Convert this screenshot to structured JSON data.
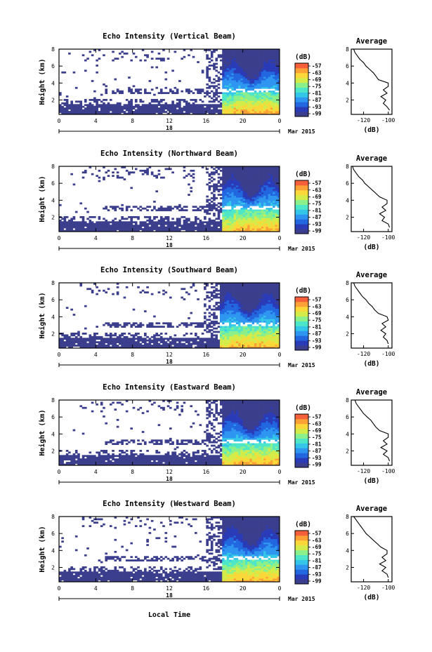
{
  "x_label": "Local Time",
  "unit_label": "(dB)",
  "colorbar": {
    "ticks": [
      -57,
      -63,
      -69,
      -75,
      -81,
      -87,
      -93,
      -99
    ],
    "colors": [
      "#3b3e8c",
      "#2a3bb8",
      "#2266e0",
      "#2e96f0",
      "#33c6e8",
      "#4ee6c8",
      "#8cf08a",
      "#d4ec4a",
      "#fbd83a",
      "#fca136",
      "#f5603a"
    ]
  },
  "chart_data": [
    {
      "type": "heatmap",
      "title": "Echo Intensity (Vertical Beam)",
      "ylabel": "Height (km)",
      "x_ticks": [
        "0",
        "4",
        "8",
        "12",
        "16",
        "20",
        "0"
      ],
      "y_ticks": [
        "2",
        "4",
        "6",
        "8"
      ],
      "xlim": [
        0,
        24
      ],
      "ylim": [
        0.3,
        8
      ],
      "date_labels": {
        "day": "18",
        "month_year": "Mar 2015"
      },
      "colorbar_range_db": [
        -99,
        -57
      ],
      "profile": {
        "title": "Average",
        "xlabel": "(dB)",
        "x_ticks": [
          "-120",
          "-100"
        ],
        "y_ticks": [
          "2",
          "4",
          "6",
          "8"
        ],
        "xlim": [
          -130,
          -97
        ],
        "ylim": [
          0.3,
          8
        ],
        "heights_km": [
          0.8,
          1.2,
          1.6,
          2.0,
          2.4,
          2.8,
          3.2,
          3.6,
          4.0,
          4.4,
          4.8,
          5.2,
          5.6,
          6.0,
          6.4,
          6.8,
          7.2,
          7.6,
          8.0
        ],
        "values_db": [
          -99,
          -101,
          -104,
          -102,
          -106,
          -101,
          -104,
          -100,
          -100,
          -108,
          -110,
          -112,
          -115,
          -118,
          -120,
          -123,
          -125,
          -127,
          -128
        ]
      }
    },
    {
      "type": "heatmap",
      "title": "Echo Intensity (Northward Beam)",
      "ylabel": "Height (km)",
      "x_ticks": [
        "0",
        "4",
        "8",
        "12",
        "16",
        "20",
        "0"
      ],
      "y_ticks": [
        "2",
        "4",
        "6",
        "8"
      ],
      "xlim": [
        0,
        24
      ],
      "ylim": [
        0.3,
        8
      ],
      "date_labels": {
        "day": "18",
        "month_year": "Mar 2015"
      },
      "colorbar_range_db": [
        -99,
        -57
      ],
      "profile": {
        "title": "Average",
        "xlabel": "(dB)",
        "x_ticks": [
          "-120",
          "-100"
        ],
        "y_ticks": [
          "2",
          "4",
          "6",
          "8"
        ],
        "xlim": [
          -130,
          -97
        ],
        "ylim": [
          0.3,
          8
        ],
        "heights_km": [
          0.8,
          1.2,
          1.6,
          2.0,
          2.4,
          2.8,
          3.2,
          3.6,
          4.0,
          4.4,
          4.8,
          5.2,
          5.6,
          6.0,
          6.4,
          6.8,
          7.2,
          7.6,
          8.0
        ],
        "values_db": [
          -99,
          -100,
          -105,
          -103,
          -107,
          -102,
          -105,
          -101,
          -101,
          -107,
          -110,
          -113,
          -116,
          -119,
          -121,
          -124,
          -126,
          -128,
          -129
        ]
      }
    },
    {
      "type": "heatmap",
      "title": "Echo Intensity (Southward Beam)",
      "ylabel": "Height (km)",
      "x_ticks": [
        "0",
        "4",
        "8",
        "12",
        "16",
        "20",
        "0"
      ],
      "y_ticks": [
        "2",
        "4",
        "6",
        "8"
      ],
      "xlim": [
        0,
        24
      ],
      "ylim": [
        0.3,
        8
      ],
      "date_labels": {
        "day": "18",
        "month_year": "Mar 2015"
      },
      "colorbar_range_db": [
        -99,
        -57
      ],
      "profile": {
        "title": "Average",
        "xlabel": "(dB)",
        "x_ticks": [
          "-120",
          "-100"
        ],
        "y_ticks": [
          "2",
          "4",
          "6",
          "8"
        ],
        "xlim": [
          -130,
          -97
        ],
        "ylim": [
          0.3,
          8
        ],
        "heights_km": [
          0.8,
          1.2,
          1.6,
          2.0,
          2.4,
          2.8,
          3.2,
          3.6,
          4.0,
          4.4,
          4.8,
          5.2,
          5.6,
          6.0,
          6.4,
          6.8,
          7.2,
          7.6,
          8.0
        ],
        "values_db": [
          -100,
          -101,
          -104,
          -102,
          -106,
          -102,
          -105,
          -100,
          -101,
          -108,
          -111,
          -113,
          -116,
          -118,
          -121,
          -123,
          -125,
          -127,
          -128
        ]
      }
    },
    {
      "type": "heatmap",
      "title": "Echo Intensity (Eastward Beam)",
      "ylabel": "Height (km)",
      "x_ticks": [
        "0",
        "4",
        "8",
        "12",
        "16",
        "20",
        "0"
      ],
      "y_ticks": [
        "2",
        "4",
        "6",
        "8"
      ],
      "xlim": [
        0,
        24
      ],
      "ylim": [
        0.3,
        8
      ],
      "date_labels": {
        "day": "18",
        "month_year": "Mar 2015"
      },
      "colorbar_range_db": [
        -99,
        -57
      ],
      "profile": {
        "title": "Average",
        "xlabel": "(dB)",
        "x_ticks": [
          "-120",
          "-100"
        ],
        "y_ticks": [
          "2",
          "4",
          "6",
          "8"
        ],
        "xlim": [
          -130,
          -97
        ],
        "ylim": [
          0.3,
          8
        ],
        "heights_km": [
          0.8,
          1.2,
          1.6,
          2.0,
          2.4,
          2.8,
          3.2,
          3.6,
          4.0,
          4.4,
          4.8,
          5.2,
          5.6,
          6.0,
          6.4,
          6.8,
          7.2,
          7.6,
          8.0
        ],
        "values_db": [
          -99,
          -100,
          -104,
          -101,
          -106,
          -101,
          -104,
          -100,
          -100,
          -107,
          -110,
          -112,
          -114,
          -117,
          -120,
          -122,
          -124,
          -126,
          -127
        ]
      }
    },
    {
      "type": "heatmap",
      "title": "Echo Intensity (Westward Beam)",
      "ylabel": "Height (km)",
      "x_ticks": [
        "0",
        "4",
        "8",
        "12",
        "16",
        "20",
        "0"
      ],
      "y_ticks": [
        "2",
        "4",
        "6",
        "8"
      ],
      "xlim": [
        0,
        24
      ],
      "ylim": [
        0.3,
        8
      ],
      "date_labels": {
        "day": "18",
        "month_year": "Mar 2015"
      },
      "colorbar_range_db": [
        -99,
        -57
      ],
      "profile": {
        "title": "Average",
        "xlabel": "(dB)",
        "x_ticks": [
          "-120",
          "-100"
        ],
        "y_ticks": [
          "2",
          "4",
          "6",
          "8"
        ],
        "xlim": [
          -130,
          -97
        ],
        "ylim": [
          0.3,
          8
        ],
        "heights_km": [
          0.8,
          1.2,
          1.6,
          2.0,
          2.4,
          2.8,
          3.2,
          3.6,
          4.0,
          4.4,
          4.8,
          5.2,
          5.6,
          6.0,
          6.4,
          6.8,
          7.2,
          7.6,
          8.0
        ],
        "values_db": [
          -100,
          -101,
          -105,
          -102,
          -107,
          -102,
          -105,
          -101,
          -101,
          -106,
          -109,
          -112,
          -115,
          -118,
          -120,
          -122,
          -124,
          -126,
          -128
        ]
      }
    }
  ]
}
